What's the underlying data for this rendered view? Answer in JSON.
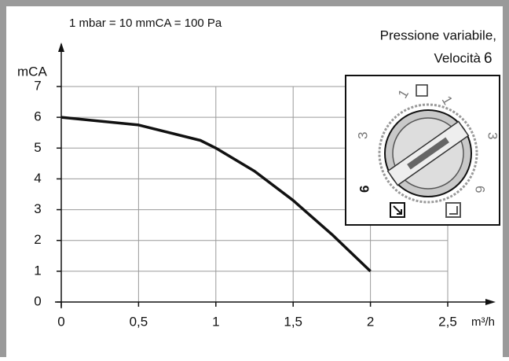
{
  "chart_data": {
    "type": "line",
    "annotations": [
      "1 mbar = 10 mmCA = 100 Pa",
      "Pressione variabile,",
      "Velocità",
      "6"
    ],
    "ylabel": "mCA",
    "xlabel": "m³/h",
    "x": [
      0,
      0.5,
      0.9,
      1,
      1.25,
      1.5,
      1.75,
      2
    ],
    "values": [
      6,
      5.75,
      5.25,
      5,
      4.25,
      3.3,
      2.2,
      1
    ],
    "color": "#111111",
    "xlim": [
      0,
      2.5
    ],
    "ylim": [
      0,
      7
    ],
    "xticks": [
      0,
      {
        "value": 0.5,
        "label": "0,5"
      },
      1,
      {
        "value": 1.5,
        "label": "1,5"
      },
      2,
      {
        "value": 2.5,
        "label": "2,5"
      }
    ],
    "yticks": [
      0,
      1,
      2,
      3,
      4,
      5,
      6,
      7
    ],
    "grid": true,
    "dial_labels": [
      "1",
      "1",
      "3",
      "3",
      "6",
      "6"
    ]
  }
}
